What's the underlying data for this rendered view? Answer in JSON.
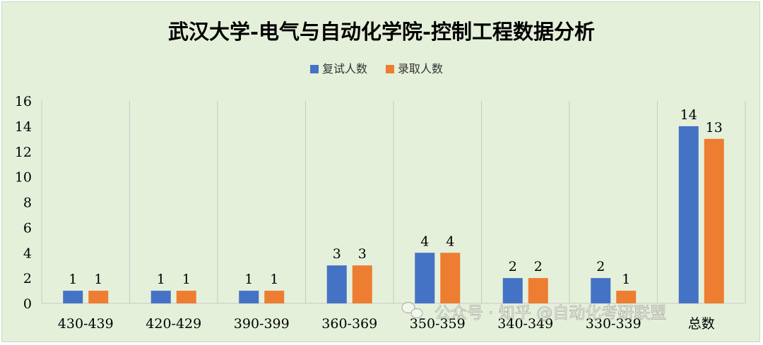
{
  "chart_data": {
    "type": "bar",
    "title": "武汉大学-电气与自动化学院-控制工程数据分析",
    "categories": [
      "430-439",
      "420-429",
      "390-399",
      "360-369",
      "350-359",
      "340-349",
      "330-339",
      "总数"
    ],
    "series": [
      {
        "name": "复试人数",
        "values": [
          1,
          1,
          1,
          3,
          4,
          2,
          2,
          14
        ],
        "color": "#4472c4"
      },
      {
        "name": "录取人数",
        "values": [
          1,
          1,
          1,
          3,
          4,
          2,
          1,
          13
        ],
        "color": "#ed7d31"
      }
    ],
    "ylim": [
      0,
      16
    ],
    "yticks": [
      0,
      2,
      4,
      6,
      8,
      10,
      12,
      14,
      16
    ],
    "grid": "vertical category separators",
    "legend": "top-center",
    "data_labels": true
  },
  "watermark": {
    "text": "公众号 · 知乎 @自动化考研联盟",
    "icon": "wechat-icon"
  },
  "colors": {
    "background": "#e5f0da",
    "grid": "#c8c8c8",
    "axis_text": "#000000"
  }
}
